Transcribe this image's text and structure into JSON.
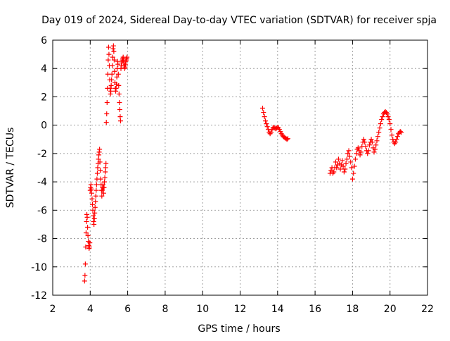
{
  "chart_data": {
    "type": "scatter",
    "title": "Day 019 of 2024, Sidereal Day-to-day VTEC variation (SDTVAR) for receiver spja",
    "xlabel": "GPS time / hours",
    "ylabel": "SDTVAR / TECUs",
    "xlim": [
      2,
      22
    ],
    "ylim": [
      -12,
      6
    ],
    "xticks": [
      "2",
      "4",
      "6",
      "8",
      "10",
      "12",
      "14",
      "16",
      "18",
      "20",
      "22"
    ],
    "yticks": [
      "-12",
      "-10",
      "-8",
      "-6",
      "-4",
      "-2",
      "0",
      "2",
      "4",
      "6"
    ],
    "grid": true,
    "marker": "+",
    "marker_color": "#ff0000",
    "series": [
      {
        "name": "spja",
        "segments": [
          {
            "x": [
              3.7,
              3.72,
              3.74,
              3.76,
              3.78,
              3.8,
              3.82,
              3.84,
              3.86,
              3.88,
              3.9,
              3.92,
              3.94,
              3.96,
              3.98,
              4.0,
              4.02,
              4.04,
              4.06,
              4.08,
              4.1,
              4.12,
              4.14,
              4.16,
              4.18,
              4.2,
              4.22,
              4.24,
              4.26,
              4.28,
              4.3,
              4.32,
              4.34,
              4.36,
              4.38,
              4.4,
              4.42,
              4.44,
              4.46,
              4.48,
              4.5,
              4.52,
              4.54,
              4.56,
              4.58,
              4.6,
              4.62,
              4.64,
              4.66,
              4.68,
              4.7,
              4.72,
              4.74,
              4.76,
              4.78,
              4.8,
              4.82,
              4.84
            ],
            "y": [
              -11.0,
              -10.6,
              -9.8,
              -8.6,
              -7.6,
              -6.8,
              -6.3,
              -6.5,
              -7.2,
              -7.8,
              -8.2,
              -8.5,
              -8.7,
              -8.6,
              -8.3,
              -4.6,
              -4.4,
              -4.2,
              -4.5,
              -4.8,
              -5.2,
              -5.6,
              -6.0,
              -6.4,
              -6.8,
              -7.0,
              -6.6,
              -6.2,
              -5.8,
              -5.4,
              -5.0,
              -4.6,
              -4.2,
              -3.8,
              -3.4,
              -3.0,
              -2.7,
              -2.4,
              -2.1,
              -1.9,
              -1.7,
              -2.6,
              -3.2,
              -3.8,
              -4.2,
              -4.6,
              -5.0,
              -4.6,
              -4.4,
              -4.2,
              -4.4,
              -4.8,
              -4.4,
              -4.0,
              -3.7,
              -3.3,
              -3.0,
              -2.7
            ]
          },
          {
            "x": [
              4.86,
              4.88,
              4.9,
              4.92,
              4.94,
              4.96,
              4.98,
              5.0,
              5.02,
              5.04,
              5.06,
              5.08,
              5.1,
              5.12,
              5.14,
              5.16,
              5.18,
              5.2,
              5.22,
              5.24,
              5.26,
              5.28,
              5.3,
              5.32,
              5.34,
              5.36,
              5.38,
              5.4,
              5.42,
              5.44,
              5.46,
              5.48,
              5.5,
              5.52,
              5.54,
              5.56,
              5.58,
              5.6,
              5.62,
              5.64,
              5.66,
              5.68,
              5.7,
              5.72,
              5.74,
              5.76,
              5.78,
              5.8,
              5.82,
              5.84,
              5.86,
              5.88,
              5.9,
              5.92,
              5.94,
              5.96
            ],
            "y": [
              0.2,
              0.8,
              1.6,
              2.6,
              3.6,
              4.6,
              5.5,
              5.0,
              4.2,
              3.2,
              2.6,
              2.2,
              2.4,
              2.8,
              3.2,
              3.6,
              4.2,
              4.8,
              5.4,
              5.6,
              5.2,
              4.6,
              3.8,
              3.0,
              2.6,
              2.4,
              2.6,
              2.9,
              3.4,
              4.0,
              4.5,
              4.3,
              3.6,
              2.8,
              2.2,
              1.6,
              1.1,
              0.6,
              0.3,
              4.0,
              4.2,
              4.4,
              4.5,
              4.6,
              4.7,
              4.8,
              4.6,
              4.4,
              4.2,
              4.0,
              4.1,
              4.3,
              4.5,
              4.6,
              4.7,
              4.8
            ]
          },
          {
            "x": [
              13.2,
              13.25,
              13.3,
              13.35,
              13.4,
              13.45,
              13.5,
              13.55,
              13.6,
              13.65,
              13.7,
              13.75,
              13.8,
              13.85,
              13.9,
              13.95,
              14.0,
              14.05,
              14.1,
              14.15,
              14.2,
              14.25,
              14.3,
              14.35,
              14.4,
              14.45,
              14.5,
              14.55
            ],
            "y": [
              1.2,
              0.9,
              0.6,
              0.3,
              0.1,
              -0.1,
              -0.3,
              -0.5,
              -0.6,
              -0.5,
              -0.3,
              -0.2,
              -0.15,
              -0.2,
              -0.25,
              -0.2,
              -0.15,
              -0.2,
              -0.3,
              -0.45,
              -0.6,
              -0.7,
              -0.8,
              -0.85,
              -0.9,
              -0.95,
              -1.0,
              -0.95
            ]
          },
          {
            "x": [
              16.8,
              16.85,
              16.9,
              16.95,
              17.0,
              17.05,
              17.1,
              17.15,
              17.2,
              17.25,
              17.3,
              17.35,
              17.4,
              17.45,
              17.5,
              17.55,
              17.6,
              17.65,
              17.7,
              17.75,
              17.8,
              17.85,
              17.9,
              17.95,
              18.0,
              18.05,
              18.1,
              18.15,
              18.2,
              18.25,
              18.3,
              18.35,
              18.4,
              18.45,
              18.5,
              18.55,
              18.6,
              18.65,
              18.7,
              18.75,
              18.8,
              18.85,
              18.9,
              18.95,
              19.0,
              19.05,
              19.1,
              19.15,
              19.2,
              19.25,
              19.3,
              19.35,
              19.4,
              19.45,
              19.5,
              19.55,
              19.6,
              19.65,
              19.7,
              19.75,
              19.8,
              19.85,
              19.9,
              19.95,
              20.0,
              20.05,
              20.1,
              20.15,
              20.2,
              20.25,
              20.3,
              20.35,
              20.4,
              20.45,
              20.5,
              20.55,
              20.6
            ],
            "y": [
              -3.4,
              -3.2,
              -3.0,
              -3.4,
              -3.3,
              -3.0,
              -2.6,
              -3.0,
              -2.8,
              -2.4,
              -2.7,
              -3.1,
              -2.8,
              -2.5,
              -2.9,
              -3.3,
              -3.1,
              -2.7,
              -2.4,
              -2.0,
              -1.8,
              -2.2,
              -2.6,
              -3.0,
              -3.8,
              -3.4,
              -2.9,
              -2.4,
              -2.0,
              -1.7,
              -1.6,
              -1.8,
              -2.1,
              -1.9,
              -1.5,
              -1.2,
              -1.0,
              -1.2,
              -1.5,
              -1.8,
              -2.0,
              -1.8,
              -1.4,
              -1.2,
              -1.0,
              -1.2,
              -1.6,
              -1.9,
              -1.7,
              -1.4,
              -1.1,
              -0.8,
              -0.5,
              -0.2,
              0.1,
              0.4,
              0.6,
              0.8,
              0.9,
              0.95,
              0.9,
              0.8,
              0.6,
              0.4,
              0.1,
              -0.3,
              -0.7,
              -1.0,
              -1.2,
              -1.3,
              -1.2,
              -1.0,
              -0.8,
              -0.6,
              -0.5,
              -0.45,
              -0.5
            ]
          }
        ]
      }
    ]
  }
}
